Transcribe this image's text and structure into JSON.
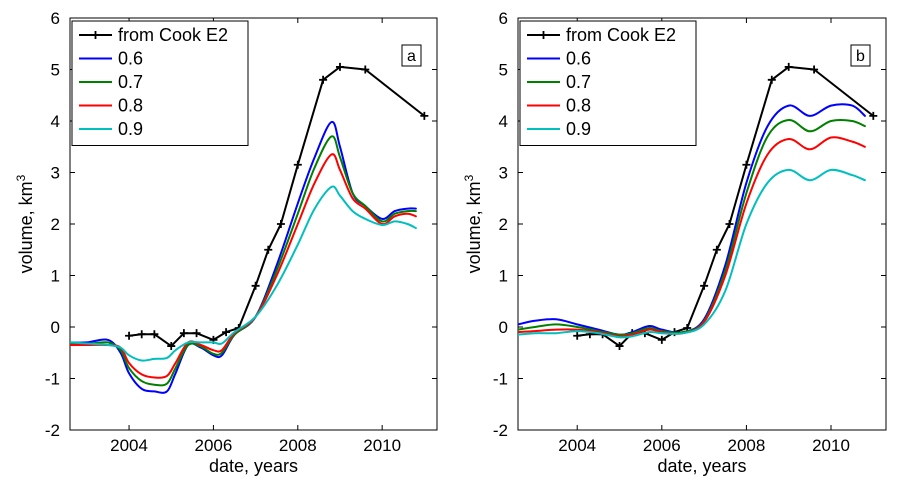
{
  "chart_data": [
    {
      "type": "line",
      "panel_label": "a",
      "xlabel": "date, years",
      "ylabel": "volume, km",
      "ylabel_superscript": "3",
      "xlim": [
        2002.6,
        2011.3
      ],
      "ylim": [
        -2,
        6
      ],
      "xticks": [
        2004,
        2006,
        2008,
        2010
      ],
      "yticks": [
        -2,
        -1,
        0,
        1,
        2,
        3,
        4,
        5,
        6
      ],
      "grid": false,
      "legend_position": "top-left",
      "series": [
        {
          "name": "from Cook E2",
          "color": "#000000",
          "marker": "plus",
          "x": [
            2004.0,
            2004.3,
            2004.6,
            2005.0,
            2005.3,
            2005.6,
            2006.0,
            2006.3,
            2006.6,
            2007.0,
            2007.3,
            2007.6,
            2008.0,
            2008.6,
            2009.0,
            2009.6,
            2011.0
          ],
          "y": [
            -0.17,
            -0.14,
            -0.14,
            -0.37,
            -0.12,
            -0.12,
            -0.25,
            -0.1,
            -0.02,
            0.8,
            1.5,
            2.0,
            3.15,
            4.8,
            5.05,
            5.0,
            4.1
          ]
        },
        {
          "name": "0.6",
          "color": "#0000ff",
          "x": [
            2002.6,
            2003.0,
            2003.5,
            2003.8,
            2004.0,
            2004.3,
            2004.6,
            2004.9,
            2005.1,
            2005.4,
            2005.7,
            2006.0,
            2006.2,
            2006.5,
            2007.0,
            2007.5,
            2008.0,
            2008.4,
            2008.8,
            2009.0,
            2009.3,
            2009.6,
            2010.0,
            2010.3,
            2010.6,
            2010.8
          ],
          "y": [
            -0.3,
            -0.3,
            -0.25,
            -0.5,
            -0.9,
            -1.2,
            -1.25,
            -1.25,
            -0.9,
            -0.35,
            -0.4,
            -0.55,
            -0.55,
            -0.15,
            0.2,
            1.2,
            2.4,
            3.3,
            3.98,
            3.5,
            2.6,
            2.35,
            2.1,
            2.25,
            2.3,
            2.3
          ]
        },
        {
          "name": "0.7",
          "color": "#008000",
          "x": [
            2002.6,
            2003.0,
            2003.5,
            2003.8,
            2004.0,
            2004.3,
            2004.6,
            2004.9,
            2005.1,
            2005.4,
            2005.7,
            2006.0,
            2006.2,
            2006.5,
            2007.0,
            2007.5,
            2008.0,
            2008.4,
            2008.8,
            2009.0,
            2009.3,
            2009.6,
            2010.0,
            2010.3,
            2010.6,
            2010.8
          ],
          "y": [
            -0.33,
            -0.33,
            -0.3,
            -0.45,
            -0.8,
            -1.05,
            -1.12,
            -1.1,
            -0.8,
            -0.35,
            -0.38,
            -0.52,
            -0.5,
            -0.15,
            0.2,
            1.1,
            2.2,
            3.1,
            3.7,
            3.3,
            2.6,
            2.35,
            2.05,
            2.2,
            2.25,
            2.25
          ]
        },
        {
          "name": "0.8",
          "color": "#ff0000",
          "x": [
            2002.6,
            2003.0,
            2003.5,
            2003.8,
            2004.0,
            2004.3,
            2004.6,
            2004.9,
            2005.1,
            2005.4,
            2005.7,
            2006.0,
            2006.2,
            2006.5,
            2007.0,
            2007.5,
            2008.0,
            2008.4,
            2008.8,
            2009.0,
            2009.3,
            2009.6,
            2010.0,
            2010.3,
            2010.6,
            2010.8
          ],
          "y": [
            -0.35,
            -0.35,
            -0.35,
            -0.4,
            -0.7,
            -0.92,
            -0.98,
            -0.95,
            -0.7,
            -0.3,
            -0.35,
            -0.45,
            -0.45,
            -0.12,
            0.2,
            1.0,
            2.0,
            2.8,
            3.35,
            3.05,
            2.5,
            2.3,
            2.0,
            2.15,
            2.2,
            2.15
          ]
        },
        {
          "name": "0.9",
          "color": "#00bfbf",
          "x": [
            2002.6,
            2003.0,
            2003.5,
            2003.8,
            2004.0,
            2004.3,
            2004.6,
            2004.9,
            2005.1,
            2005.4,
            2005.7,
            2006.0,
            2006.2,
            2006.5,
            2007.0,
            2007.5,
            2008.0,
            2008.4,
            2008.8,
            2009.0,
            2009.3,
            2009.6,
            2010.0,
            2010.3,
            2010.6,
            2010.8
          ],
          "y": [
            -0.3,
            -0.32,
            -0.35,
            -0.4,
            -0.55,
            -0.65,
            -0.62,
            -0.6,
            -0.45,
            -0.3,
            -0.3,
            -0.3,
            -0.32,
            -0.1,
            0.2,
            0.8,
            1.6,
            2.3,
            2.72,
            2.55,
            2.25,
            2.1,
            1.98,
            2.05,
            2.0,
            1.92
          ]
        }
      ]
    },
    {
      "type": "line",
      "panel_label": "b",
      "xlabel": "date, years",
      "ylabel": "volume, km",
      "ylabel_superscript": "3",
      "xlim": [
        2002.6,
        2011.3
      ],
      "ylim": [
        -2,
        6
      ],
      "xticks": [
        2004,
        2006,
        2008,
        2010
      ],
      "yticks": [
        -2,
        -1,
        0,
        1,
        2,
        3,
        4,
        5,
        6
      ],
      "grid": false,
      "legend_position": "top-left",
      "series": [
        {
          "name": "from Cook E2",
          "color": "#000000",
          "marker": "plus",
          "x": [
            2004.0,
            2004.3,
            2004.6,
            2005.0,
            2005.3,
            2005.6,
            2006.0,
            2006.3,
            2006.6,
            2007.0,
            2007.3,
            2007.6,
            2008.0,
            2008.6,
            2009.0,
            2009.6,
            2011.0
          ],
          "y": [
            -0.17,
            -0.14,
            -0.14,
            -0.37,
            -0.12,
            -0.12,
            -0.25,
            -0.1,
            -0.02,
            0.8,
            1.5,
            2.0,
            3.15,
            4.8,
            5.05,
            5.0,
            4.1
          ]
        },
        {
          "name": "0.6",
          "color": "#0000ff",
          "x": [
            2002.6,
            2003.0,
            2003.5,
            2004.0,
            2004.5,
            2005.0,
            2005.3,
            2005.7,
            2006.0,
            2006.5,
            2007.0,
            2007.5,
            2008.0,
            2008.5,
            2009.0,
            2009.5,
            2010.0,
            2010.5,
            2010.8
          ],
          "y": [
            0.05,
            0.12,
            0.15,
            0.05,
            -0.05,
            -0.15,
            -0.1,
            0.02,
            -0.05,
            -0.1,
            0.15,
            1.2,
            2.8,
            3.9,
            4.3,
            4.1,
            4.3,
            4.3,
            4.1
          ]
        },
        {
          "name": "0.7",
          "color": "#008000",
          "x": [
            2002.6,
            2003.0,
            2003.5,
            2004.0,
            2004.5,
            2005.0,
            2005.3,
            2005.7,
            2006.0,
            2006.5,
            2007.0,
            2007.5,
            2008.0,
            2008.5,
            2009.0,
            2009.5,
            2010.0,
            2010.5,
            2010.8
          ],
          "y": [
            -0.05,
            0.0,
            0.05,
            0.0,
            -0.08,
            -0.15,
            -0.12,
            -0.02,
            -0.08,
            -0.1,
            0.12,
            1.1,
            2.6,
            3.7,
            4.02,
            3.8,
            4.0,
            4.0,
            3.9
          ]
        },
        {
          "name": "0.8",
          "color": "#ff0000",
          "x": [
            2002.6,
            2003.0,
            2003.5,
            2004.0,
            2004.5,
            2005.0,
            2005.3,
            2005.7,
            2006.0,
            2006.5,
            2007.0,
            2007.5,
            2008.0,
            2008.5,
            2009.0,
            2009.5,
            2010.0,
            2010.5,
            2010.8
          ],
          "y": [
            -0.1,
            -0.08,
            -0.05,
            -0.05,
            -0.1,
            -0.18,
            -0.15,
            -0.05,
            -0.1,
            -0.12,
            0.1,
            1.0,
            2.4,
            3.35,
            3.65,
            3.45,
            3.68,
            3.6,
            3.5
          ]
        },
        {
          "name": "0.9",
          "color": "#00bfbf",
          "x": [
            2002.6,
            2003.0,
            2003.5,
            2004.0,
            2004.5,
            2005.0,
            2005.3,
            2005.7,
            2006.0,
            2006.5,
            2007.0,
            2007.5,
            2008.0,
            2008.5,
            2009.0,
            2009.5,
            2010.0,
            2010.5,
            2010.8
          ],
          "y": [
            -0.15,
            -0.12,
            -0.12,
            -0.08,
            -0.12,
            -0.2,
            -0.18,
            -0.1,
            -0.12,
            -0.12,
            0.05,
            0.7,
            2.0,
            2.8,
            3.05,
            2.85,
            3.05,
            2.95,
            2.85
          ]
        }
      ]
    }
  ]
}
